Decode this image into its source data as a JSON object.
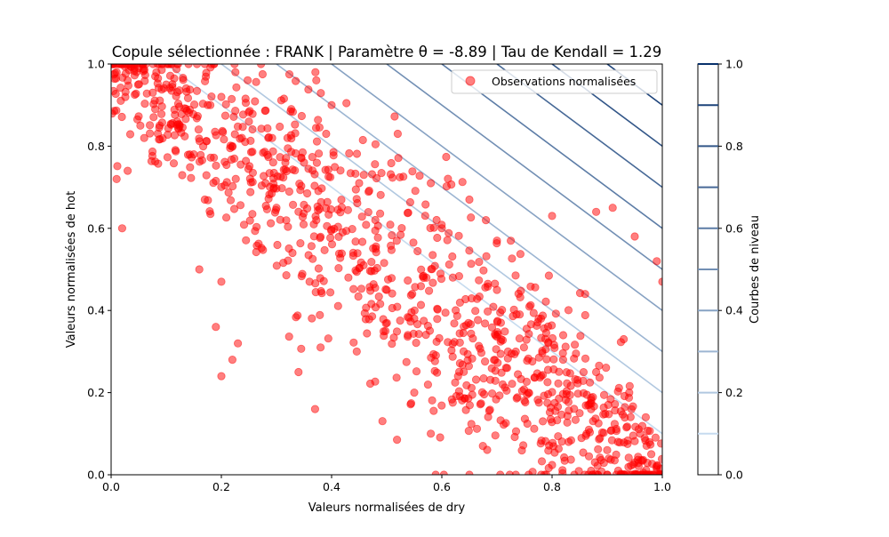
{
  "chart_data": {
    "type": "scatter",
    "title": "Copule sélectionnée : FRANK | Paramètre θ = -8.89 | Tau de Kendall = 1.29",
    "xlabel": "Valeurs normalisées de dry",
    "ylabel": "Valeurs normalisées de hot",
    "xlim": [
      0,
      1
    ],
    "ylim": [
      0,
      1
    ],
    "x_ticks": [
      "0.0",
      "0.2",
      "0.4",
      "0.6",
      "0.8",
      "1.0"
    ],
    "y_ticks": [
      "0.0",
      "0.2",
      "0.4",
      "0.6",
      "0.8",
      "1.0"
    ],
    "grid": false,
    "legend": {
      "position": "top-right",
      "entries": [
        "Observations normalisées"
      ]
    },
    "series": [
      {
        "name": "Observations normalisées",
        "color": "#ff0000",
        "alpha": 0.5,
        "sample_points": [
          [
            0.0,
            1.0
          ],
          [
            0.01,
            0.98
          ],
          [
            0.03,
            0.96
          ],
          [
            0.05,
            0.99
          ],
          [
            0.08,
            0.97
          ],
          [
            0.1,
            0.95
          ],
          [
            0.01,
            0.72
          ],
          [
            0.03,
            0.74
          ],
          [
            0.02,
            0.6
          ],
          [
            0.08,
            0.89
          ],
          [
            0.06,
            0.82
          ],
          [
            0.12,
            0.86
          ],
          [
            0.15,
            0.78
          ],
          [
            0.18,
            0.9
          ],
          [
            0.2,
            0.92
          ],
          [
            0.22,
            0.8
          ],
          [
            0.25,
            0.86
          ],
          [
            0.17,
            0.67
          ],
          [
            0.16,
            0.5
          ],
          [
            0.2,
            0.47
          ],
          [
            0.23,
            0.32
          ],
          [
            0.22,
            0.28
          ],
          [
            0.2,
            0.24
          ],
          [
            0.19,
            0.36
          ],
          [
            0.28,
            0.71
          ],
          [
            0.3,
            0.65
          ],
          [
            0.32,
            0.82
          ],
          [
            0.35,
            0.76
          ],
          [
            0.36,
            0.47
          ],
          [
            0.38,
            0.31
          ],
          [
            0.34,
            0.25
          ],
          [
            0.37,
            0.16
          ],
          [
            0.42,
            0.59
          ],
          [
            0.45,
            0.71
          ],
          [
            0.4,
            0.9
          ],
          [
            0.52,
            0.83
          ],
          [
            0.48,
            0.55
          ],
          [
            0.5,
            0.45
          ],
          [
            0.55,
            0.38
          ],
          [
            0.58,
            0.71
          ],
          [
            0.6,
            0.6
          ],
          [
            0.62,
            0.48
          ],
          [
            0.65,
            0.67
          ],
          [
            0.68,
            0.62
          ],
          [
            0.7,
            0.57
          ],
          [
            0.55,
            0.2
          ],
          [
            0.58,
            0.1
          ],
          [
            0.65,
            0.0
          ],
          [
            0.7,
            0.45
          ],
          [
            0.72,
            0.3
          ],
          [
            0.75,
            0.18
          ],
          [
            0.78,
            0.38
          ],
          [
            0.8,
            0.63
          ],
          [
            0.82,
            0.28
          ],
          [
            0.85,
            0.15
          ],
          [
            0.86,
            0.44
          ],
          [
            0.88,
            0.25
          ],
          [
            0.9,
            0.06
          ],
          [
            0.92,
            0.01
          ],
          [
            0.94,
            0.2
          ],
          [
            0.95,
            0.03
          ],
          [
            0.96,
            0.1
          ],
          [
            0.98,
            0.05
          ],
          [
            1.0,
            0.0
          ],
          [
            1.0,
            0.47
          ],
          [
            0.99,
            0.52
          ],
          [
            0.97,
            0.14
          ],
          [
            0.91,
            0.65
          ],
          [
            0.88,
            0.64
          ],
          [
            0.93,
            0.33
          ],
          [
            0.95,
            0.58
          ],
          [
            0.83,
            0.08
          ]
        ]
      }
    ],
    "contours": {
      "colormap": "Blues",
      "levels": [
        0.1,
        0.2,
        0.3,
        0.4,
        0.5,
        0.6,
        0.7,
        0.8,
        0.9,
        1.0
      ]
    },
    "colorbar": {
      "label": "Courbes de niveau",
      "range": [
        0,
        1
      ],
      "ticks": [
        "0.0",
        "0.2",
        "0.4",
        "0.6",
        "0.8",
        "1.0"
      ],
      "levels": [
        0.1,
        0.2,
        0.3,
        0.4,
        0.5,
        0.6,
        0.7,
        0.8,
        0.9,
        1.0
      ]
    }
  }
}
